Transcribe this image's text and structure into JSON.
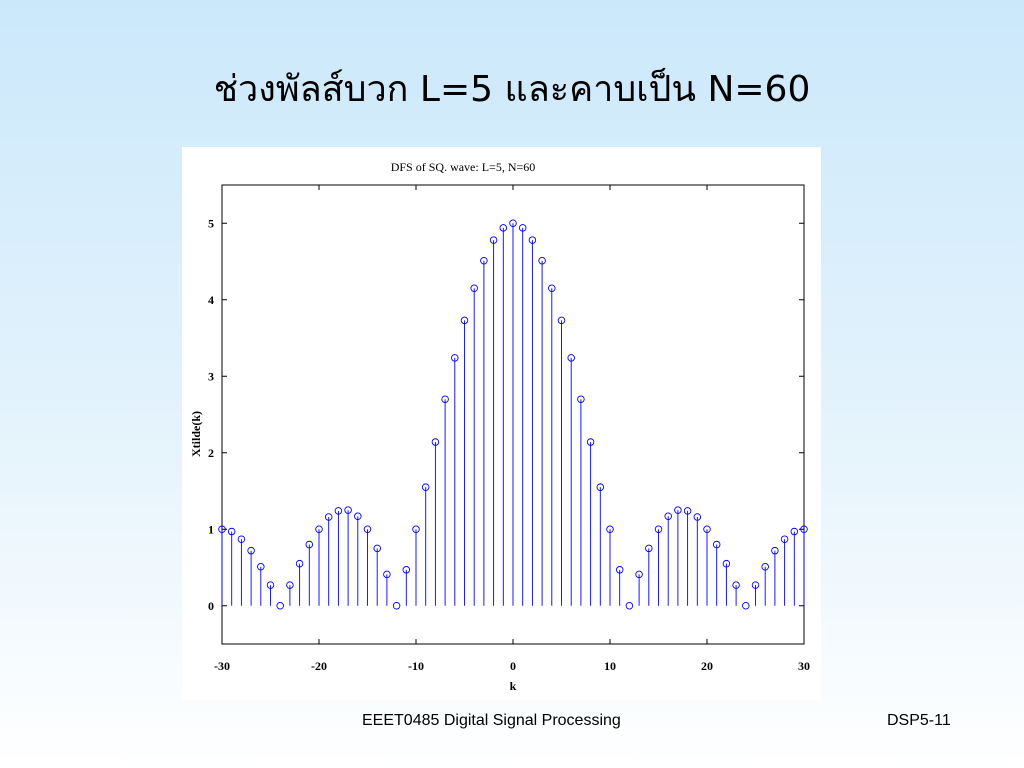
{
  "slide": {
    "title": "ช่วงพัลส์บวก L=5 และคาบเป็น N=60",
    "footer_course": "EEET0485 Digital Signal Processing",
    "footer_page": "DSP5-11"
  },
  "chart_data": {
    "type": "stem",
    "title": "DFS of SQ. wave: L=5, N=60",
    "xlabel": "k",
    "ylabel": "Xtilde(k)",
    "xlim": [
      -30,
      30
    ],
    "ylim": [
      -0.5,
      5.5
    ],
    "xticks": [
      -30,
      -20,
      -10,
      0,
      10,
      20,
      30
    ],
    "yticks": [
      0,
      1,
      2,
      3,
      4,
      5
    ],
    "grid": false,
    "stem_color": "#0000ff",
    "x": [
      -30,
      -29,
      -28,
      -27,
      -26,
      -25,
      -24,
      -23,
      -22,
      -21,
      -20,
      -19,
      -18,
      -17,
      -16,
      -15,
      -14,
      -13,
      -12,
      -11,
      -10,
      -9,
      -8,
      -7,
      -6,
      -5,
      -4,
      -3,
      -2,
      -1,
      0,
      1,
      2,
      3,
      4,
      5,
      6,
      7,
      8,
      9,
      10,
      11,
      12,
      13,
      14,
      15,
      16,
      17,
      18,
      19,
      20,
      21,
      22,
      23,
      24,
      25,
      26,
      27,
      28,
      29,
      30
    ],
    "y": [
      1.0,
      0.97,
      0.87,
      0.72,
      0.51,
      0.27,
      0.0,
      0.27,
      0.55,
      0.8,
      1.0,
      1.16,
      1.24,
      1.25,
      1.17,
      1.0,
      0.75,
      0.41,
      0.0,
      0.47,
      1.0,
      1.55,
      2.14,
      2.7,
      3.24,
      3.73,
      4.15,
      4.51,
      4.78,
      4.94,
      5.0,
      4.94,
      4.78,
      4.51,
      4.15,
      3.73,
      3.24,
      2.7,
      2.14,
      1.55,
      1.0,
      0.47,
      0.0,
      0.41,
      0.75,
      1.0,
      1.17,
      1.25,
      1.24,
      1.16,
      1.0,
      0.8,
      0.55,
      0.27,
      0.0,
      0.27,
      0.51,
      0.72,
      0.87,
      0.97,
      1.0
    ]
  }
}
